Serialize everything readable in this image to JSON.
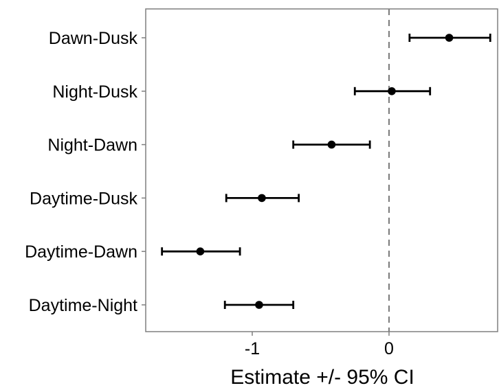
{
  "chart_data": {
    "type": "scatter",
    "subtype": "forest-plot",
    "title": "",
    "xlabel": "Estimate +/- 95% CI",
    "ylabel": "",
    "xlim": [
      -1.76,
      0.82
    ],
    "x_ticks": [
      -1,
      0
    ],
    "x_tick_labels": [
      "-1",
      "0"
    ],
    "reference_line": {
      "x": 0,
      "style": "dashed",
      "color": "#808080"
    },
    "grid": false,
    "legend": "none",
    "points": [
      {
        "label": "Dawn-Dusk",
        "estimate": 0.44,
        "lower": 0.15,
        "upper": 0.74
      },
      {
        "label": "Night-Dusk",
        "estimate": 0.02,
        "lower": -0.25,
        "upper": 0.3
      },
      {
        "label": "Night-Dawn",
        "estimate": -0.42,
        "lower": -0.7,
        "upper": -0.14
      },
      {
        "label": "Daytime-Dusk",
        "estimate": -0.93,
        "lower": -1.19,
        "upper": -0.66
      },
      {
        "label": "Daytime-Dawn",
        "estimate": -1.38,
        "lower": -1.66,
        "upper": -1.09
      },
      {
        "label": "Daytime-Night",
        "estimate": -0.95,
        "lower": -1.2,
        "upper": -0.7
      }
    ],
    "colors": {
      "marker": "#000000",
      "frame": "#7f7f7f",
      "reference": "#808080"
    }
  }
}
